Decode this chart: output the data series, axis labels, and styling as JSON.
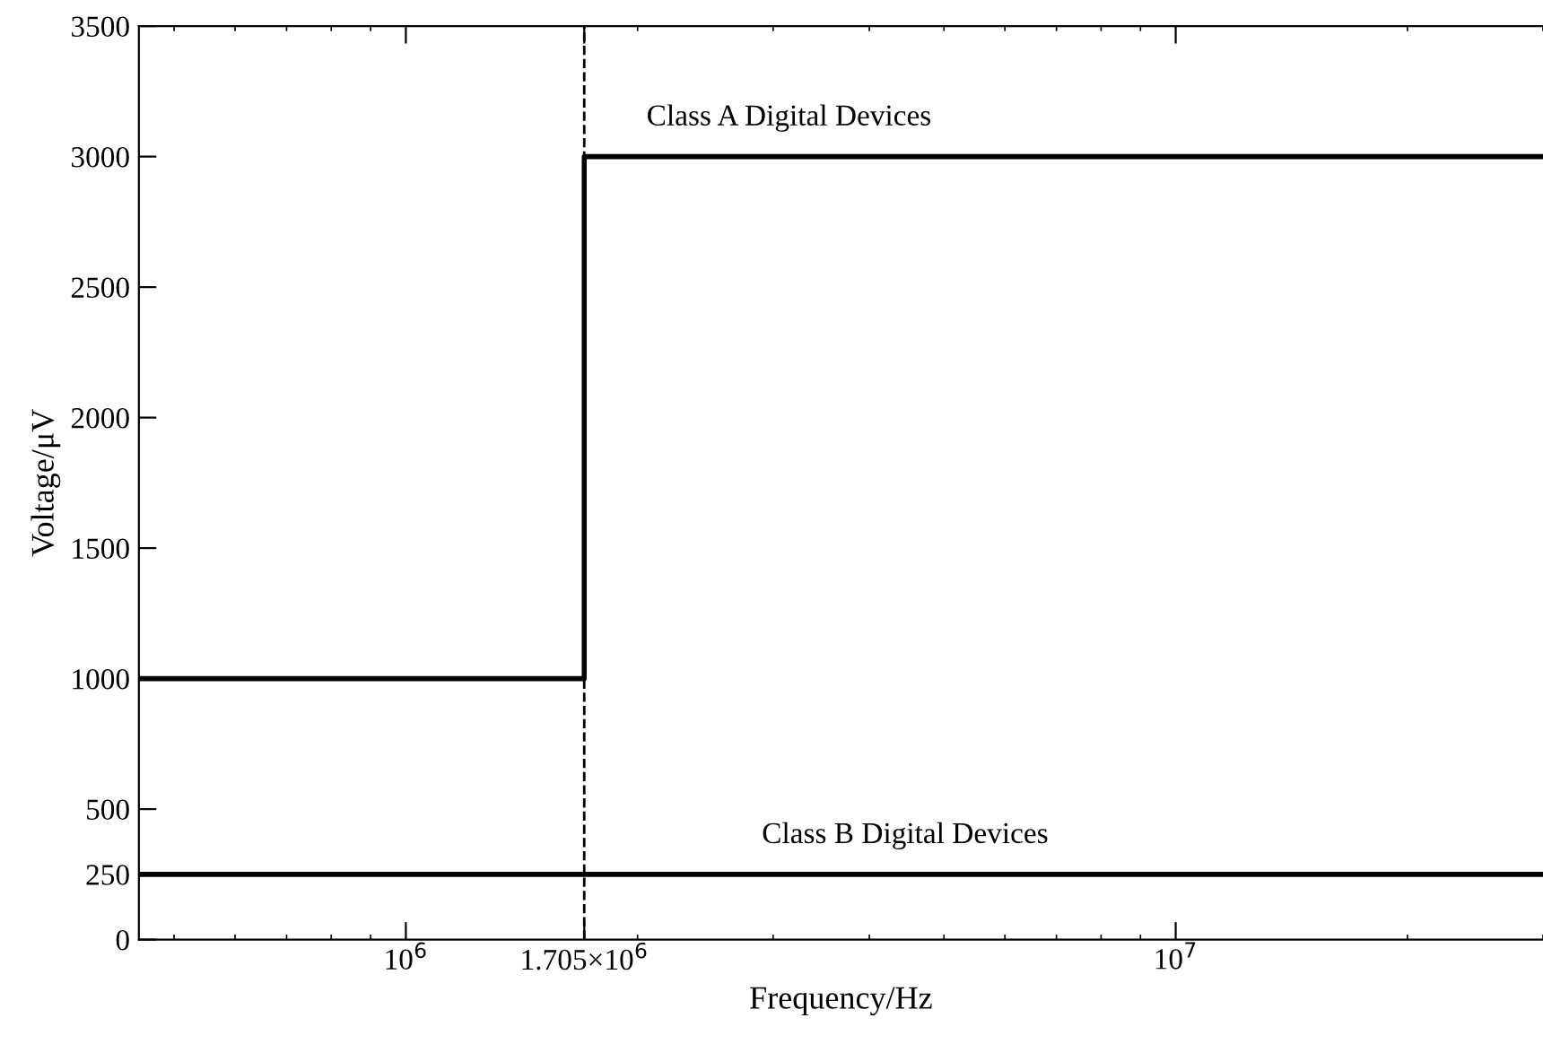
{
  "chart_data": {
    "type": "step",
    "xlabel": "Frequency/Hz",
    "ylabel": "Voltage/μV",
    "log": "x",
    "xlim": [
      450000,
      30000000
    ],
    "ylim": [
      0,
      3500
    ],
    "xticks": [
      {
        "value": 1000000,
        "label": "10$^{6}$"
      },
      {
        "value": 1705000,
        "label": "1.705×10$^{6}$"
      },
      {
        "value": 10000000,
        "label": "10$^{7}$"
      }
    ],
    "yticks": [
      0,
      250,
      500,
      1000,
      1500,
      2000,
      2500,
      3000,
      3500
    ],
    "series": [
      {
        "name": "Class A Digital Devices",
        "color": "#000000",
        "x": [
          450000,
          1705000,
          30000000
        ],
        "values": [
          1000,
          3000,
          3000
        ]
      },
      {
        "name": "Class B Digital Devices",
        "color": "#000000",
        "x": [
          450000,
          30000000
        ],
        "values": [
          250,
          250
        ]
      }
    ],
    "ref_lines": [
      {
        "axis": "x",
        "value": 1705000,
        "label": null,
        "color": "#000000",
        "line_style": "dashed"
      }
    ],
    "grid": false,
    "legend": false,
    "marker": "none",
    "line_style": "solid"
  }
}
